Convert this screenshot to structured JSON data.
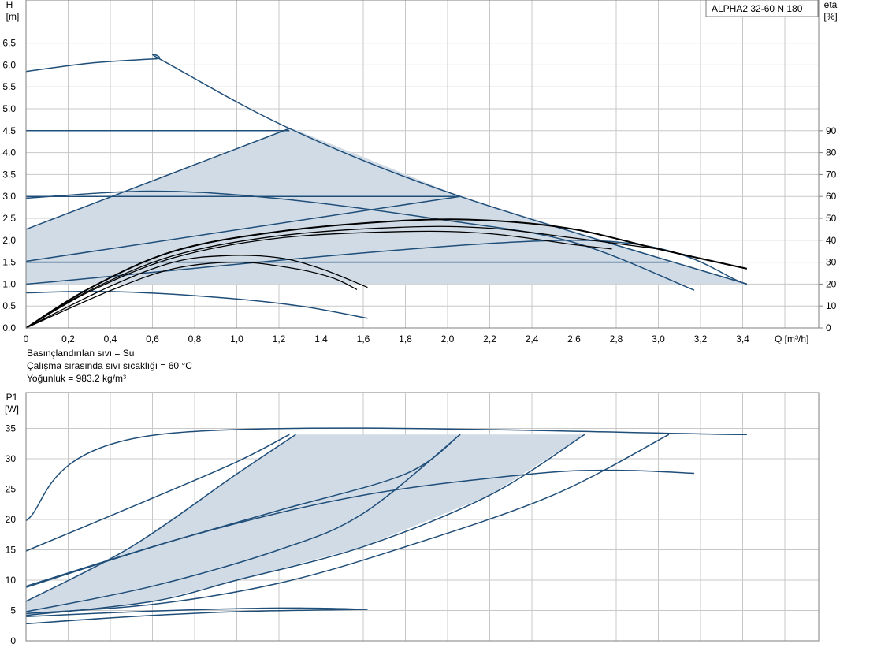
{
  "chart_data": [
    {
      "type": "line",
      "title": "ALPHA2 32-60 N 180",
      "xlabel": "Q [m³/h]",
      "ylabel_main": "H",
      "ylabel_unit": "[m]",
      "y2label_main": "eta",
      "y2label_unit": "[%]",
      "xlim": [
        0,
        3.8
      ],
      "ylim": [
        0,
        7.2
      ],
      "y2lim": [
        0,
        90
      ],
      "x_ticks": [
        "0",
        "0,2",
        "0,4",
        "0,6",
        "0,8",
        "1,0",
        "1,2",
        "1,4",
        "1,6",
        "1,8",
        "2,0",
        "2,2",
        "2,4",
        "2,6",
        "2,8",
        "3,0",
        "3,2",
        "3,4"
      ],
      "y_ticks": [
        "0.0",
        "0.5",
        "1.0",
        "1.5",
        "2.0",
        "2.5",
        "3.0",
        "3.5",
        "4.0",
        "4.5",
        "5.0",
        "5.5",
        "6.0",
        "6.5"
      ],
      "y2_ticks": [
        "0",
        "10",
        "20",
        "30",
        "40",
        "50",
        "60",
        "70",
        "80",
        "90"
      ],
      "shaded_region": [
        [
          0,
          2.25
        ],
        [
          1.25,
          4.55
        ],
        [
          1.28,
          4.52
        ],
        [
          2.06,
          3.0
        ],
        [
          3.42,
          1.0
        ],
        [
          0,
          1.0
        ]
      ],
      "series": [
        {
          "color": "#1f4e79",
          "points": [
            [
              0,
              5.85
            ],
            [
              0.3,
              6.04
            ],
            [
              0.62,
              6.14
            ],
            [
              0.64,
              6.12
            ],
            [
              1.25,
              4.55
            ],
            [
              2.06,
              3.0
            ],
            [
              3.42,
              1.0
            ]
          ]
        },
        {
          "color": "#1f4e79",
          "points": [
            [
              0,
              4.5
            ],
            [
              1.25,
              4.5
            ]
          ]
        },
        {
          "color": "#1f4e79",
          "points": [
            [
              0,
              2.25
            ],
            [
              1.25,
              4.55
            ]
          ]
        },
        {
          "color": "#1f4e79",
          "points": [
            [
              0,
              3.0
            ],
            [
              2.06,
              3.0
            ]
          ]
        },
        {
          "color": "#1f4e79",
          "points": [
            [
              0,
              1.52
            ],
            [
              2.06,
              3.0
            ]
          ]
        },
        {
          "color": "#1f4e79",
          "points": [
            [
              0,
              1.0
            ],
            [
              2.6,
              2.0
            ],
            [
              3.42,
              1.0
            ]
          ]
        },
        {
          "color": "#1f4e79",
          "points": [
            [
              0,
              1.5
            ],
            [
              3.05,
              1.5
            ]
          ]
        },
        {
          "color": "#1f4e79",
          "points": [
            [
              0,
              2.96
            ],
            [
              0.6,
              3.12
            ],
            [
              1.2,
              2.95
            ],
            [
              2.0,
              2.45
            ],
            [
              2.6,
              1.95
            ],
            [
              3.17,
              0.86
            ]
          ]
        },
        {
          "color": "#1f4e79",
          "points": [
            [
              0,
              0.8
            ],
            [
              0.4,
              0.83
            ],
            [
              0.9,
              0.7
            ],
            [
              1.3,
              0.5
            ],
            [
              1.62,
              0.22
            ]
          ]
        },
        {
          "color": "#000000",
          "axis": "eta",
          "points": [
            [
              0,
              0
            ],
            [
              0.3,
              18
            ],
            [
              0.7,
              35
            ],
            [
              1.2,
              44
            ],
            [
              1.8,
              49
            ],
            [
              2.2,
              49
            ],
            [
              2.6,
              45
            ],
            [
              3.0,
              36
            ],
            [
              3.42,
              27
            ]
          ]
        },
        {
          "color": "#000000",
          "axis": "eta",
          "points": [
            [
              0,
              0
            ],
            [
              0.3,
              17
            ],
            [
              0.7,
              33
            ],
            [
              1.2,
              42
            ],
            [
              1.8,
              46
            ],
            [
              2.2,
              45.5
            ],
            [
              2.6,
              41
            ],
            [
              3.0,
              36
            ]
          ]
        },
        {
          "color": "#000000",
          "axis": "eta",
          "points": [
            [
              0,
              0
            ],
            [
              0.3,
              16.5
            ],
            [
              0.7,
              32
            ],
            [
              1.2,
              41
            ],
            [
              1.8,
              44
            ],
            [
              2.2,
              43
            ],
            [
              2.6,
              38
            ],
            [
              2.78,
              36
            ]
          ]
        },
        {
          "color": "#000000",
          "axis": "eta",
          "points": [
            [
              0,
              0
            ],
            [
              0.4,
              19
            ],
            [
              0.7,
              30
            ],
            [
              0.95,
              33
            ],
            [
              1.2,
              32
            ],
            [
              1.4,
              27
            ],
            [
              1.62,
              18.5
            ]
          ]
        },
        {
          "color": "#000000",
          "axis": "eta",
          "points": [
            [
              0,
              0
            ],
            [
              0.4,
              17
            ],
            [
              0.7,
              27
            ],
            [
              1.0,
              30
            ],
            [
              1.25,
              27.5
            ],
            [
              1.45,
              23
            ],
            [
              1.57,
              17.5
            ]
          ]
        }
      ]
    },
    {
      "type": "line",
      "ylabel_main": "P1",
      "ylabel_unit": "[W]",
      "xlim": [
        0,
        3.8
      ],
      "ylim": [
        0,
        38
      ],
      "y_ticks": [
        "0",
        "5",
        "10",
        "15",
        "20",
        "25",
        "30",
        "35"
      ],
      "shaded_region": [
        [
          0,
          6.5
        ],
        [
          0.5,
          15.5
        ],
        [
          1.0,
          27.5
        ],
        [
          1.28,
          34
        ],
        [
          2.65,
          34
        ],
        [
          2.2,
          24
        ],
        [
          1.6,
          15.5
        ],
        [
          1.0,
          10
        ],
        [
          0.6,
          6.5
        ],
        [
          0,
          4.2
        ]
      ],
      "series": [
        {
          "color": "#1f4e79",
          "points": [
            [
              0,
              19.8
            ],
            [
              0.63,
              34
            ],
            [
              3.42,
              34
            ]
          ]
        },
        {
          "color": "#1f4e79",
          "points": [
            [
              0,
              14.8
            ],
            [
              0.6,
              23.5
            ],
            [
              1.0,
              29.5
            ],
            [
              1.25,
              34
            ]
          ]
        },
        {
          "color": "#1f4e79",
          "points": [
            [
              0,
              6.5
            ],
            [
              0.5,
              15.5
            ],
            [
              1.0,
              27.5
            ],
            [
              1.28,
              34
            ]
          ]
        },
        {
          "color": "#1f4e79",
          "points": [
            [
              0,
              9.0
            ],
            [
              0.6,
              15.5
            ],
            [
              1.2,
              21.5
            ],
            [
              1.8,
              27.5
            ],
            [
              2.06,
              34
            ]
          ]
        },
        {
          "color": "#1f4e79",
          "points": [
            [
              0,
              4.8
            ],
            [
              0.6,
              9.0
            ],
            [
              1.2,
              15.0
            ],
            [
              1.6,
              21.0
            ],
            [
              2.06,
              34
            ]
          ]
        },
        {
          "color": "#1f4e79",
          "points": [
            [
              0,
              8.8
            ],
            [
              0.8,
              17.5
            ],
            [
              1.6,
              24.0
            ],
            [
              2.4,
              27.5
            ],
            [
              2.8,
              28.1
            ],
            [
              3.17,
              27.6
            ]
          ]
        },
        {
          "color": "#1f4e79",
          "points": [
            [
              0,
              4.2
            ],
            [
              0.6,
              6.5
            ],
            [
              1.0,
              10.0
            ],
            [
              1.6,
              15.5
            ],
            [
              2.2,
              24.0
            ],
            [
              2.65,
              34
            ]
          ]
        },
        {
          "color": "#1f4e79",
          "points": [
            [
              0,
              4.5
            ],
            [
              0.6,
              6.0
            ],
            [
              1.2,
              9.5
            ],
            [
              1.8,
              15.5
            ],
            [
              2.5,
              24.0
            ],
            [
              3.05,
              34
            ]
          ]
        },
        {
          "color": "#1f4e79",
          "points": [
            [
              0,
              2.8
            ],
            [
              0.5,
              4.0
            ],
            [
              1.0,
              4.8
            ],
            [
              1.62,
              5.2
            ]
          ]
        },
        {
          "color": "#1f4e79",
          "points": [
            [
              0,
              4.0
            ],
            [
              0.6,
              4.9
            ],
            [
              1.2,
              5.4
            ],
            [
              1.62,
              5.2
            ]
          ]
        }
      ]
    }
  ],
  "notes": [
    "Basınçlandırılan sıvı = Su",
    "Çalışma sırasında sıvı sıcaklığı = 60 °C",
    "Yoğunluk = 983.2 kg/m³"
  ]
}
